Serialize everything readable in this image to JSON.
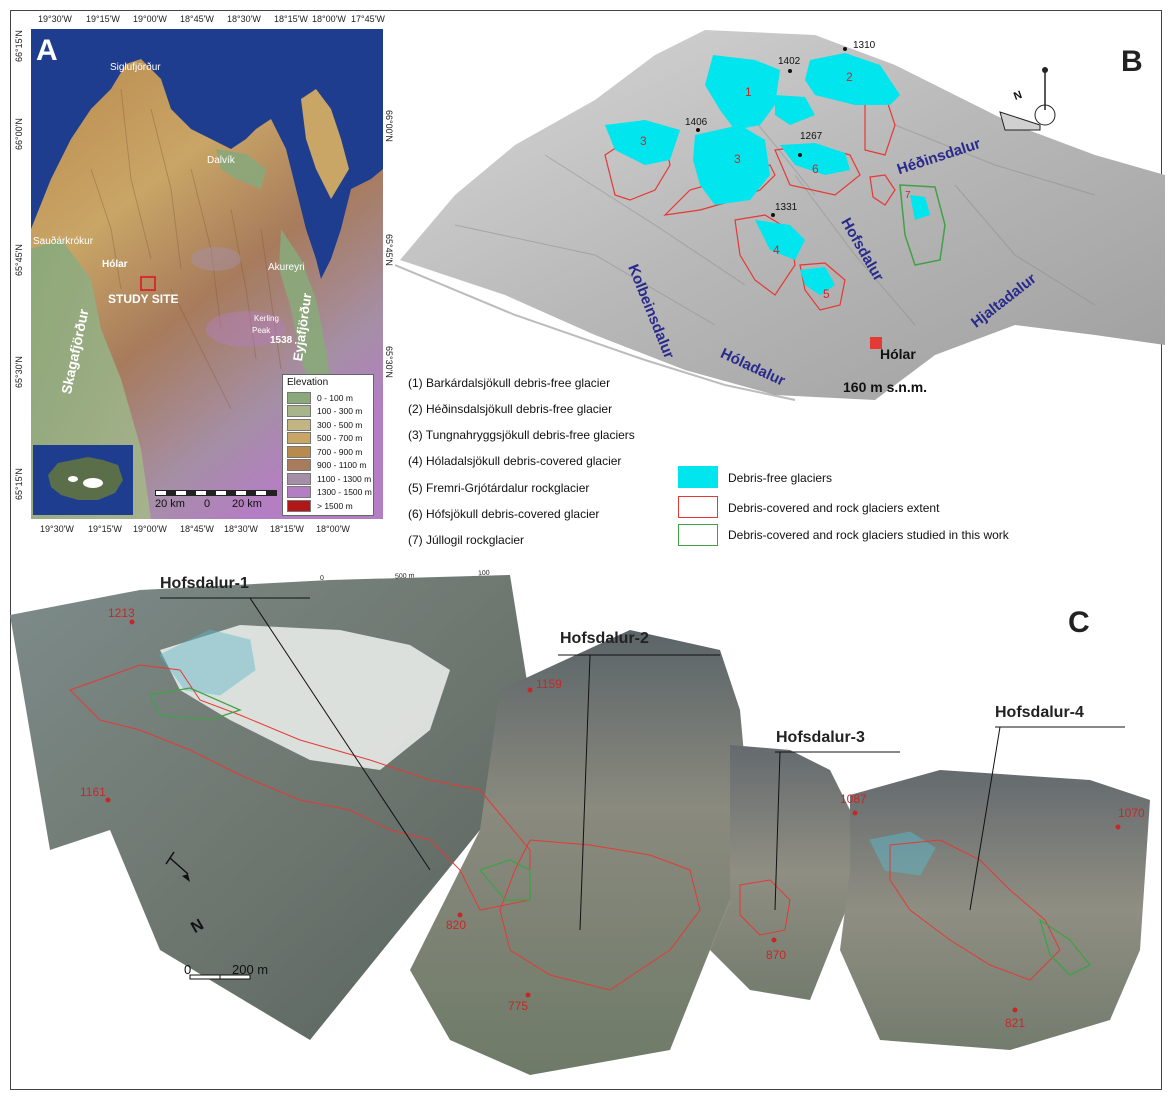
{
  "panels": {
    "a": "A",
    "b": "B",
    "c": "C"
  },
  "colors": {
    "sea": "#1f3d8f",
    "debris_free": "#00e5ee",
    "debris_outline": "#e53935",
    "studied_outline": "#43a047",
    "valley_text": "#2a2a8c",
    "elevation_marker": "#c62828"
  },
  "panel_a": {
    "lon_labels": [
      "19°30'W",
      "19°15'W",
      "19°00'W",
      "18°45'W",
      "18°30'W",
      "18°15'W",
      "18°00'W",
      "17°45'W"
    ],
    "bottom_lon_labels": [
      "19°30'W",
      "19°15'W",
      "19°00'W",
      "18°45'W",
      "18°30'W",
      "18°15'W",
      "18°00'W"
    ],
    "lat_labels": [
      "66°15'N",
      "66°00'N",
      "65°45'N",
      "65°30'N",
      "65°15'N"
    ],
    "places": {
      "siglufjordur": "Siglufjörður",
      "dalvik": "Dalvík",
      "saudarkrokur": "Sauðárkrókur",
      "holar": "Hólar",
      "akureyri": "Akureyri",
      "study_site": "STUDY SITE",
      "skagafjordur": "Skagafjörður",
      "eyjafjordur": "Eyjafjörður",
      "kerling": "Kerling",
      "peak": "Peak",
      "peak_height": "1538"
    },
    "scale_labels": [
      "20 km",
      "0",
      "20 km"
    ],
    "elevation_legend": {
      "title": "Elevation",
      "classes": [
        {
          "label": "0 - 100 m",
          "color": "#8aa87a"
        },
        {
          "label": "100 - 300 m",
          "color": "#a7b48c"
        },
        {
          "label": "300 - 500 m",
          "color": "#c2b583"
        },
        {
          "label": "500 - 700 m",
          "color": "#c9a566"
        },
        {
          "label": "700 - 900 m",
          "color": "#b98a4e"
        },
        {
          "label": "900 - 1100 m",
          "color": "#a77b5c"
        },
        {
          "label": "1100 - 1300 m",
          "color": "#a58fa6"
        },
        {
          "label": "1300 - 1500 m",
          "color": "#b47ec2"
        },
        {
          "label": "> 1500 m",
          "color": "#b01717"
        }
      ]
    }
  },
  "panel_b": {
    "peaks": [
      "1310",
      "1402",
      "1406",
      "1267",
      "1331"
    ],
    "glacier_numbers": [
      "1",
      "2",
      "3",
      "3",
      "6",
      "4",
      "5",
      "7"
    ],
    "valleys": {
      "hedinsdalur": "Héðinsdalur",
      "hofsdalur": "Hofsdalur",
      "hjaltadalur": "Hjaltadalur",
      "kolbeinsdalur": "Kolbeinsdalur",
      "holadalur": "Hóladalur"
    },
    "town": "Hólar",
    "town_elevation": "160 m s.n.m.",
    "north_label": "N",
    "list": [
      "(1) Barkárdalsjökull debris-free glacier",
      "(2) Héðinsdalsjökull debris-free glacier",
      "(3) Tungnahryggsjökull debris-free glaciers",
      "(4) Hóladalsjökull debris-covered glacier",
      "(5) Fremri-Grjótárdalur rockglacier",
      "(6) Hófsjökull debris-covered glacier",
      "(7) Júllogil rockglacier"
    ],
    "legend": [
      "Debris-free glaciers",
      "Debris-covered and rock glaciers extent",
      "Debris-covered and rock glaciers studied in this work"
    ]
  },
  "panel_c": {
    "sites": [
      "Hofsdalur-1",
      "Hofsdalur-2",
      "Hofsdalur-3",
      "Hofsdalur-4"
    ],
    "elevations": [
      "1213",
      "1159",
      "1161",
      "820",
      "775",
      "1087",
      "870",
      "1070",
      "821"
    ],
    "north_label": "N",
    "scale_labels": [
      "0",
      "200 m"
    ],
    "image_scale_labels": [
      "0",
      "500 m",
      "100"
    ]
  }
}
